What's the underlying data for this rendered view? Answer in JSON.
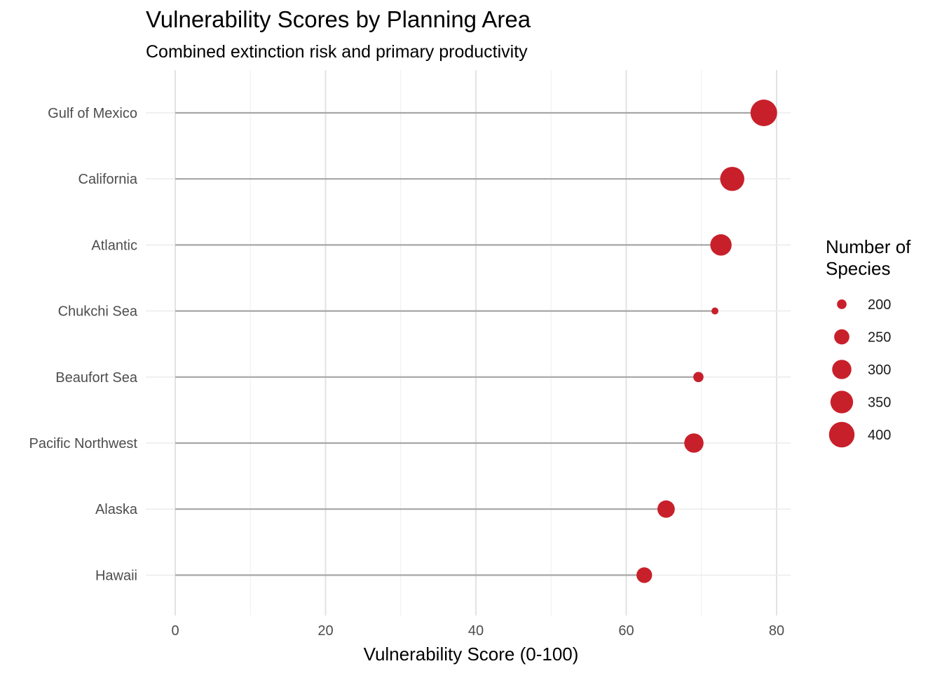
{
  "chart_data": {
    "type": "lollipop",
    "title": "Vulnerability Scores by Planning Area",
    "subtitle": "Combined extinction risk and primary productivity",
    "xlabel": "Vulnerability Score (0-100)",
    "ylabel": "",
    "xlim": [
      0,
      84
    ],
    "x_ticks": [
      0,
      20,
      40,
      60,
      80
    ],
    "grid": true,
    "point_color": "#c8202b",
    "stem_color": "#a6a6a6",
    "categories": [
      "Gulf of Mexico",
      "California",
      "Atlantic",
      "Chukchi Sea",
      "Beaufort Sea",
      "Pacific Northwest",
      "Alaska",
      "Hawaii"
    ],
    "values": [
      78.3,
      74.1,
      72.6,
      71.8,
      69.6,
      69.0,
      65.3,
      62.4
    ],
    "species": [
      420,
      375,
      330,
      185,
      205,
      300,
      275,
      255
    ],
    "legend": {
      "title_lines": [
        "Number of",
        "Species"
      ],
      "placement": "right",
      "sizes": [
        200,
        250,
        300,
        350,
        400
      ]
    }
  }
}
